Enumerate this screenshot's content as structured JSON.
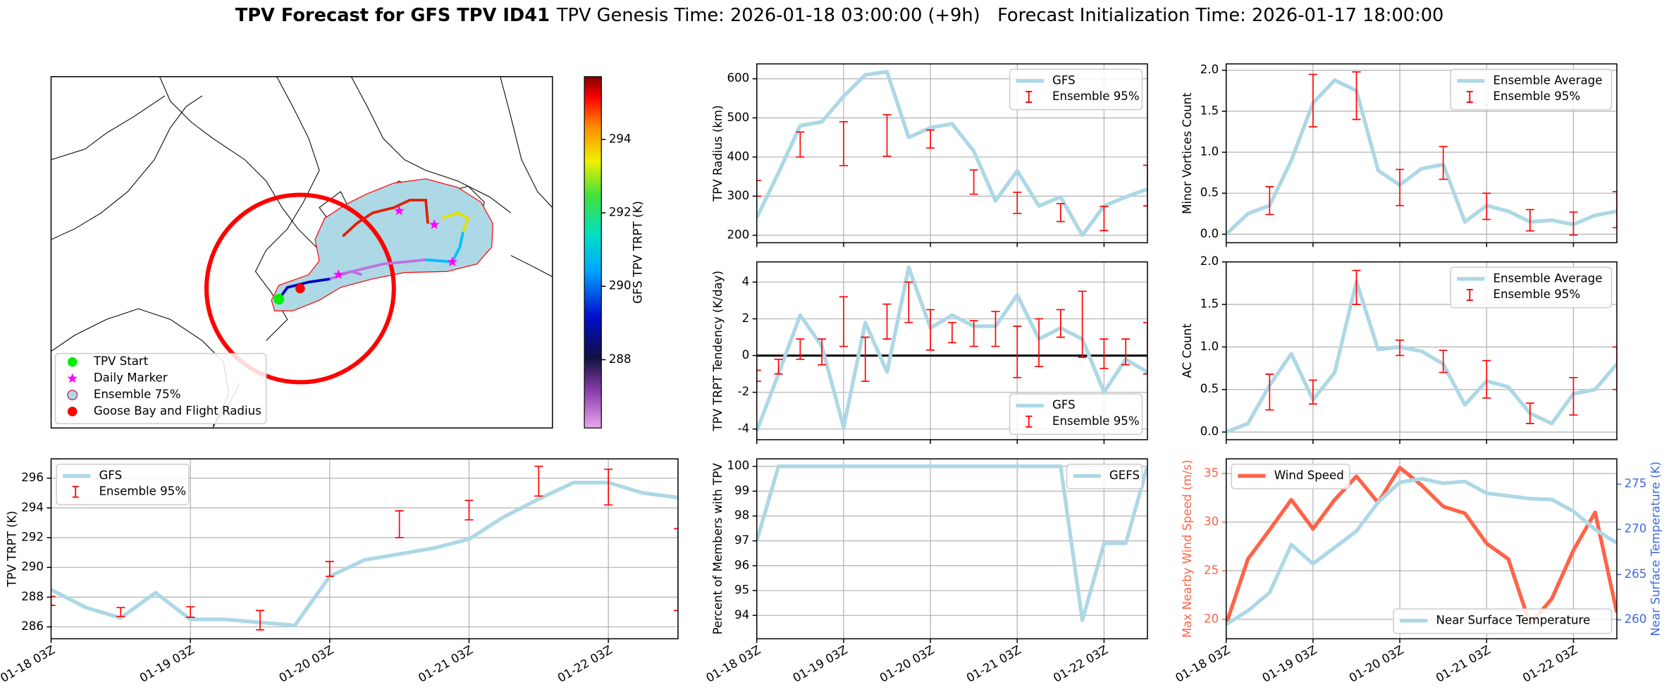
{
  "figure": {
    "title": "TPV Forecast for GFS TPV ID41",
    "subtitle": "TPV Genesis Time: 2026-01-18 03:00:00 (+9h)   Forecast Initialization Time: 2026-01-17 18:00:00"
  },
  "chart_data": [
    {
      "type": "map",
      "legend": [
        {
          "name": "TPV Start",
          "color": "#00ee00"
        },
        {
          "name": "Daily Marker",
          "color": "#ff00ff"
        },
        {
          "name": "Ensemble 75%",
          "color": "#add8e6"
        },
        {
          "name": "Goose Bay and Flight Radius",
          "color": "#ff0000"
        }
      ],
      "colorbar": {
        "label": "GFS TPV TRPT (K)",
        "lim": [
          286.14,
          295.71
        ],
        "ticks": [
          288,
          290,
          292,
          294
        ]
      }
    },
    {
      "type": "line",
      "ylabel": "TPV TRPT (K)",
      "grid": true,
      "legend": "upper left",
      "categories": [
        "01-18 03Z",
        null,
        null,
        null,
        "01-19 03Z",
        null,
        null,
        null,
        "01-20 03Z",
        null,
        null,
        null,
        "01-21 03Z",
        null,
        null,
        null,
        "01-22 03Z",
        null,
        null
      ],
      "ylim": [
        285.2,
        297.3
      ],
      "yticks": [
        286,
        288,
        290,
        292,
        294,
        296
      ],
      "series": [
        {
          "name": "GFS",
          "color": "#add8e6",
          "values": [
            288.5,
            287.3,
            286.6,
            288.3,
            286.5,
            286.5,
            286.3,
            286.1,
            289.4,
            290.5,
            290.9,
            291.3,
            291.9,
            293.4,
            294.6,
            295.7,
            295.7,
            295.0,
            294.7
          ]
        },
        {
          "name": "Ensemble 95%",
          "color": "#ff0000",
          "values": [
            287.75,
            null,
            287.0,
            null,
            287.0,
            null,
            286.45,
            null,
            289.9,
            null,
            292.9,
            null,
            293.85,
            null,
            295.8,
            null,
            295.4,
            null,
            289.85
          ],
          "errors": [
            0.3,
            null,
            0.3,
            null,
            0.35,
            null,
            0.65,
            null,
            0.5,
            null,
            0.9,
            null,
            0.65,
            null,
            1.0,
            null,
            1.2,
            null,
            2.75
          ]
        }
      ]
    },
    {
      "type": "line",
      "ylabel": "TPV Radius (km)",
      "grid": true,
      "legend": "upper right",
      "ylim": [
        181,
        638
      ],
      "yticks": [
        200,
        300,
        400,
        500,
        600
      ],
      "series": [
        {
          "name": "GFS",
          "color": "#add8e6",
          "values": [
            245,
            360,
            480,
            490,
            555,
            610,
            618,
            450,
            475,
            485,
            415,
            288,
            365,
            275,
            298,
            200,
            275,
            298,
            318
          ]
        },
        {
          "name": "Ensemble 95%",
          "color": "#ff0000",
          "values": [
            320,
            null,
            432,
            null,
            434,
            null,
            455,
            null,
            446,
            null,
            336,
            null,
            283,
            null,
            258,
            null,
            243,
            null,
            327
          ],
          "errors": [
            20,
            null,
            32,
            null,
            56,
            null,
            53,
            null,
            23,
            null,
            31,
            null,
            27,
            null,
            23,
            null,
            31,
            null,
            52
          ]
        }
      ]
    },
    {
      "type": "line",
      "ylabel": "TPV TRPT Tendency (K/day)",
      "grid": true,
      "legend": "lower right",
      "hline": 0,
      "ylim": [
        -4.58,
        5.1
      ],
      "yticks": [
        -4,
        -2,
        0,
        2,
        4
      ],
      "series": [
        {
          "name": "GFS",
          "color": "#add8e6",
          "values": [
            -4.1,
            -1.0,
            2.2,
            0.5,
            -3.9,
            1.8,
            -0.9,
            4.8,
            1.5,
            2.2,
            1.6,
            1.6,
            3.3,
            0.9,
            1.5,
            0.9,
            -2.0,
            -0.2,
            -0.9
          ]
        },
        {
          "name": "Ensemble 95%",
          "color": "#ff0000",
          "values": [
            -1.1,
            -0.6,
            0.35,
            0.2,
            1.85,
            -0.2,
            1.85,
            2.9,
            1.4,
            1.25,
            1.2,
            1.45,
            0.2,
            0.7,
            1.75,
            1.7,
            0.1,
            0.2,
            0.4
          ],
          "errors": [
            0.3,
            0.4,
            0.55,
            0.7,
            1.35,
            1.2,
            0.95,
            1.1,
            1.1,
            0.55,
            0.7,
            0.95,
            1.4,
            1.3,
            0.75,
            1.8,
            0.8,
            0.7,
            1.4
          ]
        }
      ]
    },
    {
      "type": "line",
      "ylabel": "Percent of Members with TPV",
      "grid": true,
      "legend": "upper right",
      "categories": [
        "01-18 03Z",
        null,
        null,
        null,
        "01-19 03Z",
        null,
        null,
        null,
        "01-20 03Z",
        null,
        null,
        null,
        "01-21 03Z",
        null,
        null,
        null,
        "01-22 03Z",
        null,
        null
      ],
      "ylim": [
        93.06,
        100.3
      ],
      "yticks": [
        94,
        95,
        96,
        97,
        98,
        99,
        100
      ],
      "series": [
        {
          "name": "GEFS",
          "color": "#add8e6",
          "values": [
            97,
            100,
            100,
            100,
            100,
            100,
            100,
            100,
            100,
            100,
            100,
            100,
            100,
            100,
            100,
            93.8,
            96.9,
            96.9,
            100
          ]
        }
      ]
    },
    {
      "type": "line",
      "ylabel": "Minor Vortices Count",
      "grid": true,
      "legend": "upper right",
      "ylim": [
        -0.104,
        2.078
      ],
      "yticks": [
        {
          "value": 0,
          "label": "0.0"
        },
        0.5,
        {
          "value": 1,
          "label": "1.0"
        },
        1.5,
        {
          "value": 2,
          "label": "2.0"
        }
      ],
      "series": [
        {
          "name": "Ensemble Average",
          "color": "#add8e6",
          "values": [
            0.0,
            0.25,
            0.35,
            0.9,
            1.6,
            1.88,
            1.75,
            0.78,
            0.6,
            0.8,
            0.85,
            0.15,
            0.35,
            0.28,
            0.15,
            0.17,
            0.12,
            0.23,
            0.28
          ]
        },
        {
          "name": "Ensemble 95%",
          "color": "#ff0000",
          "values": [
            null,
            null,
            0.41,
            null,
            1.63,
            null,
            1.69,
            null,
            0.57,
            null,
            0.87,
            null,
            0.34,
            null,
            0.17,
            null,
            0.13,
            null,
            0.3
          ],
          "errors": [
            null,
            null,
            0.17,
            null,
            0.32,
            null,
            0.29,
            null,
            0.22,
            null,
            0.2,
            null,
            0.16,
            null,
            0.13,
            null,
            0.14,
            null,
            0.22
          ]
        }
      ]
    },
    {
      "type": "line",
      "ylabel": "AC Count",
      "grid": true,
      "legend": "upper right",
      "ylim": [
        -0.09,
        2.0
      ],
      "yticks": [
        {
          "value": 0,
          "label": "0.0"
        },
        0.5,
        {
          "value": 1,
          "label": "1.0"
        },
        1.5,
        {
          "value": 2,
          "label": "2.0"
        }
      ],
      "series": [
        {
          "name": "Ensemble Average",
          "color": "#add8e6",
          "values": [
            0.0,
            0.1,
            0.55,
            0.92,
            0.38,
            0.7,
            1.77,
            0.97,
            1.0,
            0.95,
            0.8,
            0.32,
            0.6,
            0.53,
            0.22,
            0.1,
            0.45,
            0.5,
            0.8
          ]
        },
        {
          "name": "Ensemble 95%",
          "color": "#ff0000",
          "values": [
            null,
            null,
            0.47,
            null,
            0.47,
            null,
            1.7,
            null,
            0.99,
            null,
            0.83,
            null,
            0.62,
            null,
            0.22,
            null,
            0.42,
            null,
            0.75
          ],
          "errors": [
            null,
            null,
            0.21,
            null,
            0.14,
            null,
            0.2,
            null,
            0.09,
            null,
            0.13,
            null,
            0.22,
            null,
            0.12,
            null,
            0.22,
            null,
            0.25
          ]
        }
      ]
    },
    {
      "type": "line",
      "ylabel": "Max Nearby Wind Speed (m/s)",
      "ylabel_color": "#ff6347",
      "y2label": "Near Surface Temperature (K)",
      "y2label_color": "#4169e1",
      "grid": true,
      "legend": [
        "upper left",
        "lower right"
      ],
      "categories": [
        "01-18 03Z",
        null,
        null,
        null,
        "01-19 03Z",
        null,
        null,
        null,
        "01-20 03Z",
        null,
        null,
        null,
        "01-21 03Z",
        null,
        null,
        null,
        "01-22 03Z",
        null,
        null
      ],
      "ylim": [
        18.0,
        36.5
      ],
      "yticks": [
        20,
        25,
        30,
        35
      ],
      "y2lim": [
        257.9,
        277.8
      ],
      "y2ticks": [
        260,
        265,
        270,
        275
      ],
      "series": [
        {
          "name": "Wind Speed",
          "color": "#ff6347",
          "values": [
            19.5,
            26.2,
            29.2,
            32.3,
            29.3,
            32.3,
            34.7,
            32.0,
            35.6,
            33.8,
            31.6,
            30.9,
            27.8,
            26.2,
            19.5,
            22.1,
            27.1,
            31.0,
            20.7
          ]
        },
        {
          "name": "Near Surface Temperature",
          "color": "#add8e6",
          "axis": "y2",
          "values": [
            259.5,
            261.0,
            263.0,
            268.3,
            266.2,
            268.0,
            269.8,
            273.0,
            275.2,
            275.6,
            275.1,
            275.3,
            274.0,
            273.7,
            273.4,
            273.3,
            272.0,
            270.0,
            268.5
          ]
        }
      ]
    }
  ]
}
